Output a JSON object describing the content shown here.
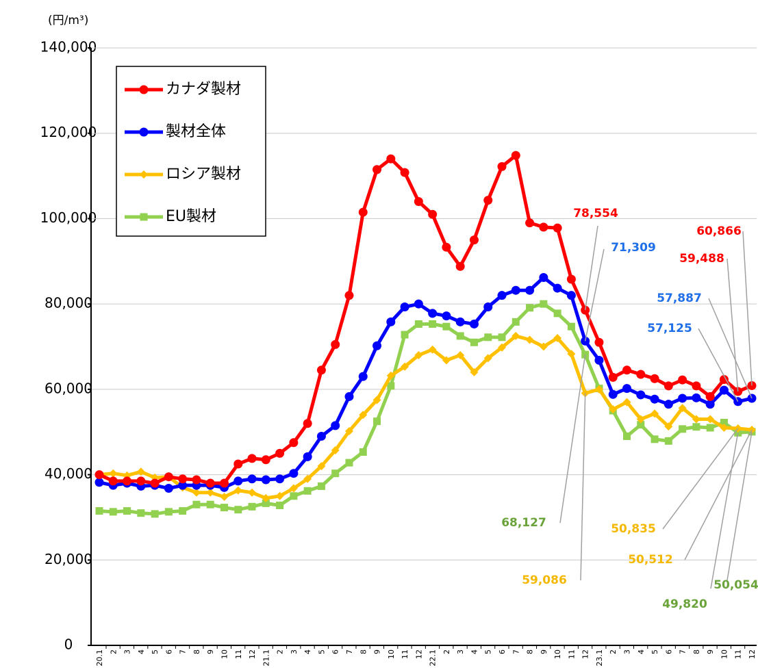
{
  "chart_data": {
    "type": "line",
    "y_label": "(円/m³)",
    "categories": [
      "20.1",
      "2",
      "3",
      "4",
      "5",
      "6",
      "7",
      "8",
      "9",
      "10",
      "11",
      "12",
      "21.1",
      "2",
      "3",
      "4",
      "5",
      "6",
      "7",
      "8",
      "9",
      "10",
      "11",
      "12",
      "22.1",
      "2",
      "3",
      "4",
      "5",
      "6",
      "7",
      "8",
      "9",
      "10",
      "11",
      "12",
      "23.1",
      "2",
      "3",
      "4",
      "5",
      "6",
      "7",
      "8",
      "9",
      "10",
      "11",
      "12"
    ],
    "ylim": [
      0,
      140000
    ],
    "yticks": [
      0,
      {
        "value": 20000,
        "label": "20,000"
      },
      {
        "value": 40000,
        "label": "40,000"
      },
      {
        "value": 60000,
        "label": "60,000"
      },
      {
        "value": 80000,
        "label": "80,000"
      },
      {
        "value": 100000,
        "label": "100,000"
      },
      {
        "value": 120000,
        "label": "120,000"
      },
      {
        "value": 140000,
        "label": "140,000"
      }
    ],
    "grid": true,
    "legend": "upper left",
    "series": [
      {
        "name": "カナダ製材",
        "color": "#ff0000",
        "marker": "circle",
        "values": [
          40000,
          38500,
          38500,
          38500,
          38000,
          39500,
          39000,
          38800,
          38000,
          38000,
          42500,
          43800,
          43500,
          45000,
          47500,
          52000,
          64500,
          70500,
          82000,
          101500,
          111500,
          114000,
          110800,
          104000,
          101000,
          93300,
          88800,
          95000,
          104300,
          112200,
          114800,
          99000,
          98000,
          97800,
          85800,
          78554,
          71000,
          62800,
          64500,
          63500,
          62500,
          60800,
          62200,
          60800,
          58300,
          62300,
          59488,
          60866
        ],
        "value_labels": [
          null,
          null,
          null,
          null,
          null,
          null,
          null,
          null,
          null,
          null,
          null,
          null,
          null,
          null,
          null,
          null,
          null,
          null,
          null,
          null,
          null,
          null,
          null,
          null,
          null,
          null,
          null,
          null,
          null,
          null,
          null,
          null,
          null,
          null,
          null,
          "78,554",
          null,
          null,
          null,
          null,
          null,
          null,
          null,
          null,
          null,
          null,
          "59,488",
          "60,866"
        ]
      },
      {
        "name": "製材全体",
        "color": "#0000ff",
        "marker": "circle",
        "values": [
          38200,
          37500,
          38000,
          37300,
          37500,
          36800,
          37500,
          37500,
          37500,
          37000,
          38500,
          39000,
          38800,
          39000,
          40300,
          44200,
          49000,
          51500,
          58300,
          63000,
          70200,
          75800,
          79300,
          80000,
          77800,
          77200,
          75800,
          75300,
          79300,
          82000,
          83200,
          83200,
          86200,
          83700,
          82000,
          71309,
          66800,
          58800,
          60200,
          58700,
          57700,
          56500,
          57900,
          58000,
          56500,
          59800,
          57125,
          57887
        ],
        "value_labels": [
          null,
          null,
          null,
          null,
          null,
          null,
          null,
          null,
          null,
          null,
          null,
          null,
          null,
          null,
          null,
          null,
          null,
          null,
          null,
          null,
          null,
          null,
          null,
          null,
          null,
          null,
          null,
          null,
          null,
          null,
          null,
          null,
          null,
          null,
          null,
          "71,309",
          null,
          null,
          null,
          null,
          null,
          null,
          null,
          null,
          null,
          null,
          "57,125",
          "57,887"
        ]
      },
      {
        "name": "ロシア製材",
        "color": "#ffc000",
        "marker": "diamond",
        "values": [
          40000,
          40300,
          39800,
          40700,
          39300,
          39500,
          37000,
          35800,
          35800,
          34800,
          36300,
          35800,
          34500,
          35000,
          36800,
          39000,
          42000,
          45700,
          50200,
          54000,
          57500,
          63200,
          65300,
          68000,
          69300,
          66800,
          68000,
          64000,
          67300,
          69800,
          72500,
          71600,
          70000,
          72000,
          68300,
          59086,
          60000,
          55300,
          57000,
          53000,
          54300,
          51300,
          55600,
          53000,
          53000,
          51000,
          50835,
          50512
        ],
        "value_labels": [
          null,
          null,
          null,
          null,
          null,
          null,
          null,
          null,
          null,
          null,
          null,
          null,
          null,
          null,
          null,
          null,
          null,
          null,
          null,
          null,
          null,
          null,
          null,
          null,
          null,
          null,
          null,
          null,
          null,
          null,
          null,
          null,
          null,
          null,
          null,
          "59,086",
          null,
          null,
          null,
          null,
          null,
          null,
          null,
          null,
          null,
          null,
          "50,835",
          "50,512"
        ]
      },
      {
        "name": "EU製材",
        "color": "#92d050",
        "marker": "square",
        "values": [
          31500,
          31300,
          31500,
          31000,
          30800,
          31300,
          31500,
          33000,
          33000,
          32300,
          31800,
          32500,
          33300,
          32800,
          35000,
          36200,
          37300,
          40300,
          42800,
          45300,
          52500,
          60800,
          72800,
          75300,
          75300,
          74700,
          72500,
          71000,
          72200,
          72200,
          75800,
          79100,
          80000,
          77800,
          74700,
          68127,
          60200,
          55000,
          49000,
          51700,
          48300,
          47900,
          50700,
          51200,
          51000,
          52200,
          49820,
          50054
        ],
        "value_labels": [
          null,
          null,
          null,
          null,
          null,
          null,
          null,
          null,
          null,
          null,
          null,
          null,
          null,
          null,
          null,
          null,
          null,
          null,
          null,
          null,
          null,
          null,
          null,
          null,
          null,
          null,
          null,
          null,
          null,
          null,
          null,
          null,
          null,
          null,
          null,
          "68,127",
          null,
          null,
          null,
          null,
          null,
          null,
          null,
          null,
          null,
          null,
          "49,820",
          "50,054"
        ]
      }
    ]
  }
}
